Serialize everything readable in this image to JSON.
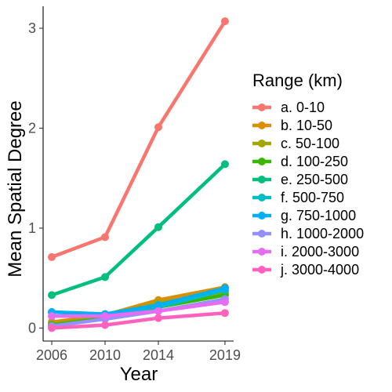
{
  "chart_data": {
    "type": "line",
    "xlabel": "Year",
    "ylabel": "Mean Spatial Degree",
    "x": [
      2006,
      2010,
      2014,
      2019
    ],
    "xticks": [
      "2006",
      "2010",
      "2014",
      "2019"
    ],
    "yticks": [
      "0",
      "1",
      "2",
      "3"
    ],
    "ylim": [
      -0.13,
      3.22
    ],
    "grid": false,
    "legend": {
      "title": "Range (km)",
      "position": "right"
    },
    "series": [
      {
        "name": "a. 0-10",
        "color": "#F8766D",
        "values": [
          0.71,
          0.91,
          2.01,
          3.07
        ]
      },
      {
        "name": "b. 10-50",
        "color": "#D89000",
        "values": [
          0.06,
          0.13,
          0.28,
          0.41
        ]
      },
      {
        "name": "c. 50-100",
        "color": "#A3A500",
        "values": [
          0.04,
          0.12,
          0.25,
          0.36
        ]
      },
      {
        "name": "d. 100-250",
        "color": "#39B600",
        "values": [
          0.03,
          0.1,
          0.21,
          0.33
        ]
      },
      {
        "name": "e. 250-500",
        "color": "#00BF7D",
        "values": [
          0.33,
          0.51,
          1.01,
          1.64
        ]
      },
      {
        "name": "f. 500-750",
        "color": "#00BFC4",
        "values": [
          0.16,
          0.14,
          0.21,
          0.38
        ]
      },
      {
        "name": "g. 750-1000",
        "color": "#00B0F6",
        "values": [
          0.16,
          0.14,
          0.23,
          0.4
        ]
      },
      {
        "name": "h. 1000-2000",
        "color": "#9590FF",
        "values": [
          0.02,
          0.09,
          0.17,
          0.29
        ]
      },
      {
        "name": "i. 2000-3000",
        "color": "#E76BF3",
        "values": [
          0.12,
          0.12,
          0.17,
          0.26
        ]
      },
      {
        "name": "j. 3000-4000",
        "color": "#FF62BC",
        "values": [
          0.0,
          0.03,
          0.1,
          0.15
        ]
      }
    ]
  }
}
